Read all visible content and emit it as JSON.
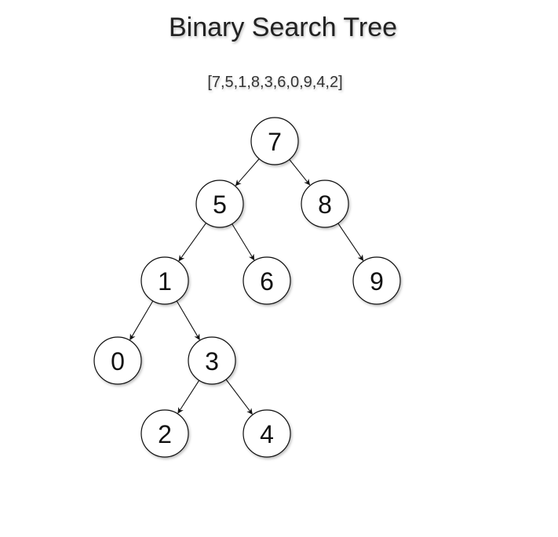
{
  "title": "Binary Search Tree",
  "sequence": "[7,5,1,8,3,6,0,9,4,2]",
  "tree": {
    "root": "7",
    "nodes": [
      "7",
      "5",
      "8",
      "1",
      "6",
      "9",
      "0",
      "3",
      "2",
      "4"
    ],
    "edges": [
      {
        "from": "7",
        "to": "5"
      },
      {
        "from": "7",
        "to": "8"
      },
      {
        "from": "5",
        "to": "1"
      },
      {
        "from": "5",
        "to": "6"
      },
      {
        "from": "8",
        "to": "9"
      },
      {
        "from": "1",
        "to": "0"
      },
      {
        "from": "1",
        "to": "3"
      },
      {
        "from": "3",
        "to": "2"
      },
      {
        "from": "3",
        "to": "4"
      }
    ]
  }
}
